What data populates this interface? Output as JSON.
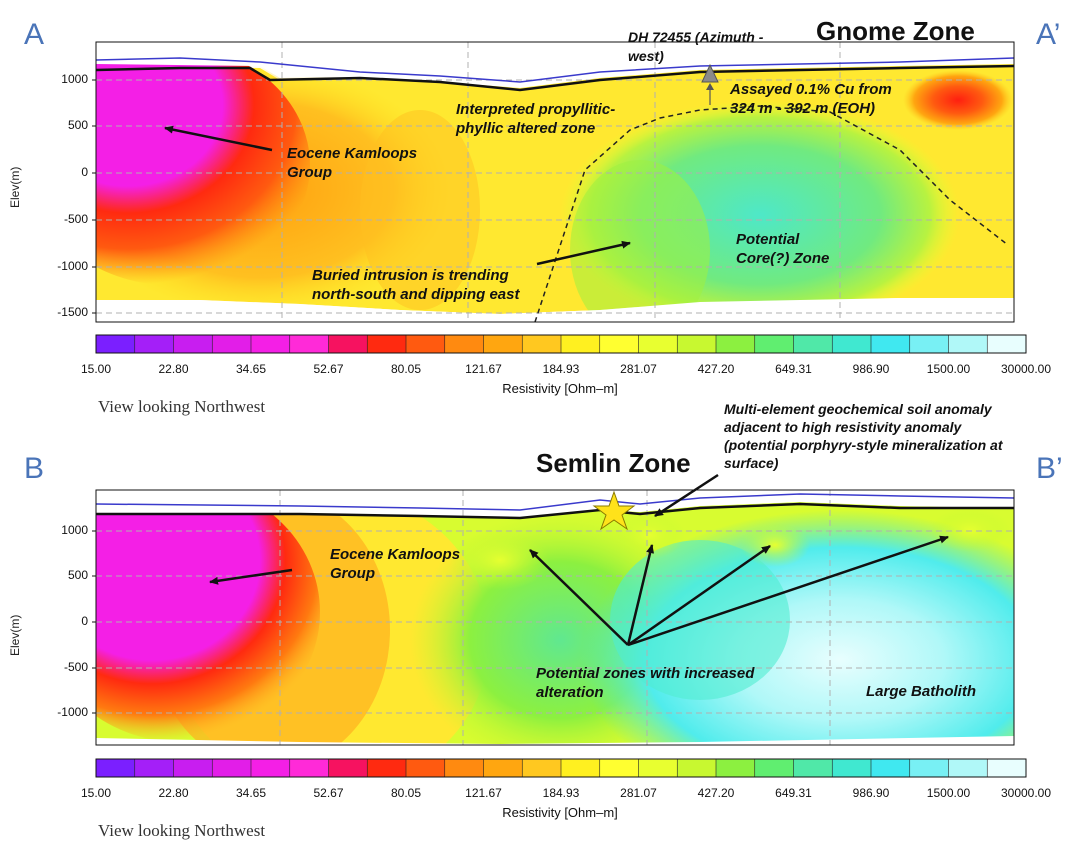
{
  "labels": {
    "a": "A",
    "a_prime": "A’",
    "b": "B",
    "b_prime": "B’"
  },
  "panel_top": {
    "zone_title": "Gnome Zone",
    "drillhole_label": "DH 72455 (Azimuth - west)",
    "assay_label": "Assayed 0.1% Cu from 324 m - 392 m (EOH)",
    "altered_zone_label": "Interpreted propyllitic-phyllic altered zone",
    "kamloops_label": "Eocene Kamloops Group",
    "intrusion_label": "Buried intrusion is trending north-south and dipping east",
    "core_label": "Potential Core(?) Zone",
    "y_axis_label": "Elev(m)",
    "y_ticks": [
      "1000",
      "500",
      "0",
      "-500",
      "-1000",
      "-1500"
    ],
    "colorbar_title": "Resistivity [Ohm–m]",
    "view_caption": "View looking Northwest"
  },
  "panel_bottom": {
    "zone_title": "Semlin Zone",
    "soil_label": "Multi-element geochemical soil anomaly adjacent to high resistivity anomaly (potential porphyry-style mineralization at surface)",
    "kamloops_label": "Eocene Kamloops Group",
    "alteration_label": "Potential zones with increased alteration",
    "batholith_label": "Large Batholith",
    "y_axis_label": "Elev(m)",
    "y_ticks": [
      "1000",
      "500",
      "0",
      "-500",
      "-1000"
    ],
    "colorbar_title": "Resistivity [Ohm–m]",
    "view_caption": "View looking Northwest"
  },
  "colorbar": {
    "tick_labels": [
      "15.00",
      "22.80",
      "34.65",
      "52.67",
      "80.05",
      "121.67",
      "184.93",
      "281.07",
      "427.20",
      "649.31",
      "986.90",
      "1500.00",
      "30000.00"
    ],
    "colors": [
      "#7b1fff",
      "#a41ff8",
      "#c81ef0",
      "#e21ee8",
      "#f41fe6",
      "#ff2ad8",
      "#f61260",
      "#ff2a10",
      "#ff5a10",
      "#ff8a10",
      "#ffa610",
      "#ffc820",
      "#fff020",
      "#ffff30",
      "#e8ff30",
      "#c8f830",
      "#8cf040",
      "#60ee70",
      "#50e8a8",
      "#40e8d0",
      "#40e8f0",
      "#78f0f4",
      "#b0f8f8",
      "#e8fefe"
    ]
  },
  "colors": {
    "corner_label": "#4a74b8",
    "topography_line": "#3a3acc",
    "star": "#ffe21a"
  }
}
